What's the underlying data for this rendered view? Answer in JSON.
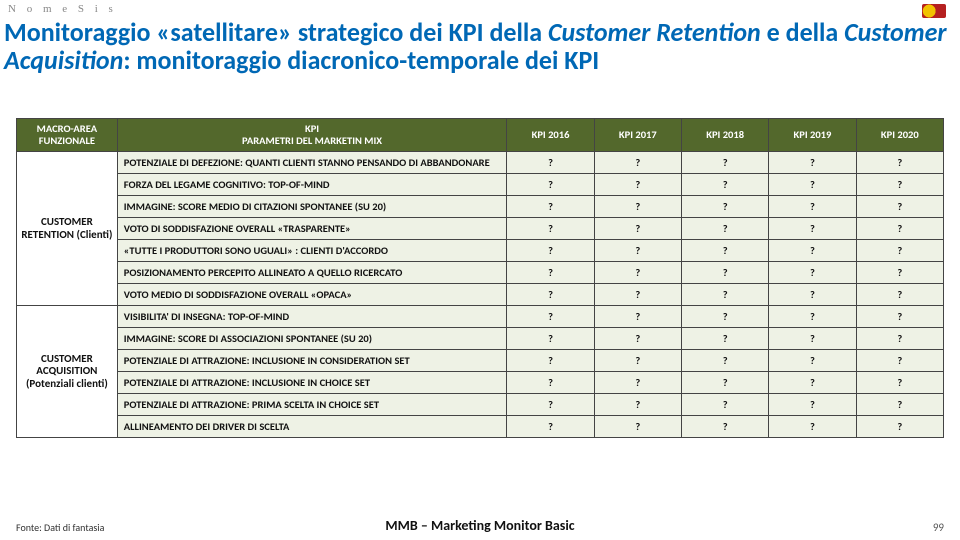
{
  "logo_text": "N o m e S i s",
  "title_parts": {
    "p1": "Monitoraggio «satellitare» strategico dei KPI della ",
    "i1": "Customer Retention",
    "p2": " e della ",
    "i2": "Customer Acquisition",
    "p3": ": monitoraggio diacronico-temporale dei KPI"
  },
  "columns": {
    "macro": "MACRO-AREA FUNZIONALE",
    "kpi": "KPI\nPARAMETRI DEL MARKETIN MIX",
    "y1": "KPI 2016",
    "y2": "KPI 2017",
    "y3": "KPI 2018",
    "y4": "KPI 2019",
    "y5": "KPI 2020"
  },
  "macro1": "CUSTOMER RETENTION (Clienti)",
  "macro2": "CUSTOMER ACQUISITION (Potenziali clienti)",
  "rows1": [
    "POTENZIALE DI DEFEZIONE: QUANTI CLIENTI STANNO PENSANDO DI ABBANDONARE",
    "FORZA DEL LEGAME COGNITIVO: TOP-OF-MIND",
    "IMMAGINE: SCORE MEDIO DI CITAZIONI SPONTANEE (SU 20)",
    "VOTO DI SODDISFAZIONE OVERALL «TRASPARENTE»",
    "«TUTTE I PRODUTTORI SONO UGUALI» : CLIENTI D'ACCORDO",
    "POSIZIONAMENTO PERCEPITO ALLINEATO A QUELLO RICERCATO",
    "VOTO MEDIO DI SODDISFAZIONE OVERALL «OPACA»"
  ],
  "rows2": [
    "VISIBILITA' DI INSEGNA: TOP-OF-MIND",
    "IMMAGINE: SCORE DI ASSOCIAZIONI SPONTANEE (SU 20)",
    "POTENZIALE DI ATTRAZIONE:  INCLUSIONE IN CONSIDERATION SET",
    "POTENZIALE DI ATTRAZIONE: INCLUSIONE IN CHOICE SET",
    "POTENZIALE DI ATTRAZIONE: PRIMA SCELTA IN CHOICE SET",
    "ALLINEAMENTO DEI DRIVER DI SCELTA"
  ],
  "cell_value": "?",
  "footer": {
    "source": "Fonte: Dati di fantasia",
    "middle": "MMB – Marketing Monitor Basic",
    "page": "99"
  },
  "style": {
    "title_color": "#0068b5",
    "header_bg": "#53682c",
    "row_bg": "#eef2e5",
    "border_color": "#444444"
  }
}
